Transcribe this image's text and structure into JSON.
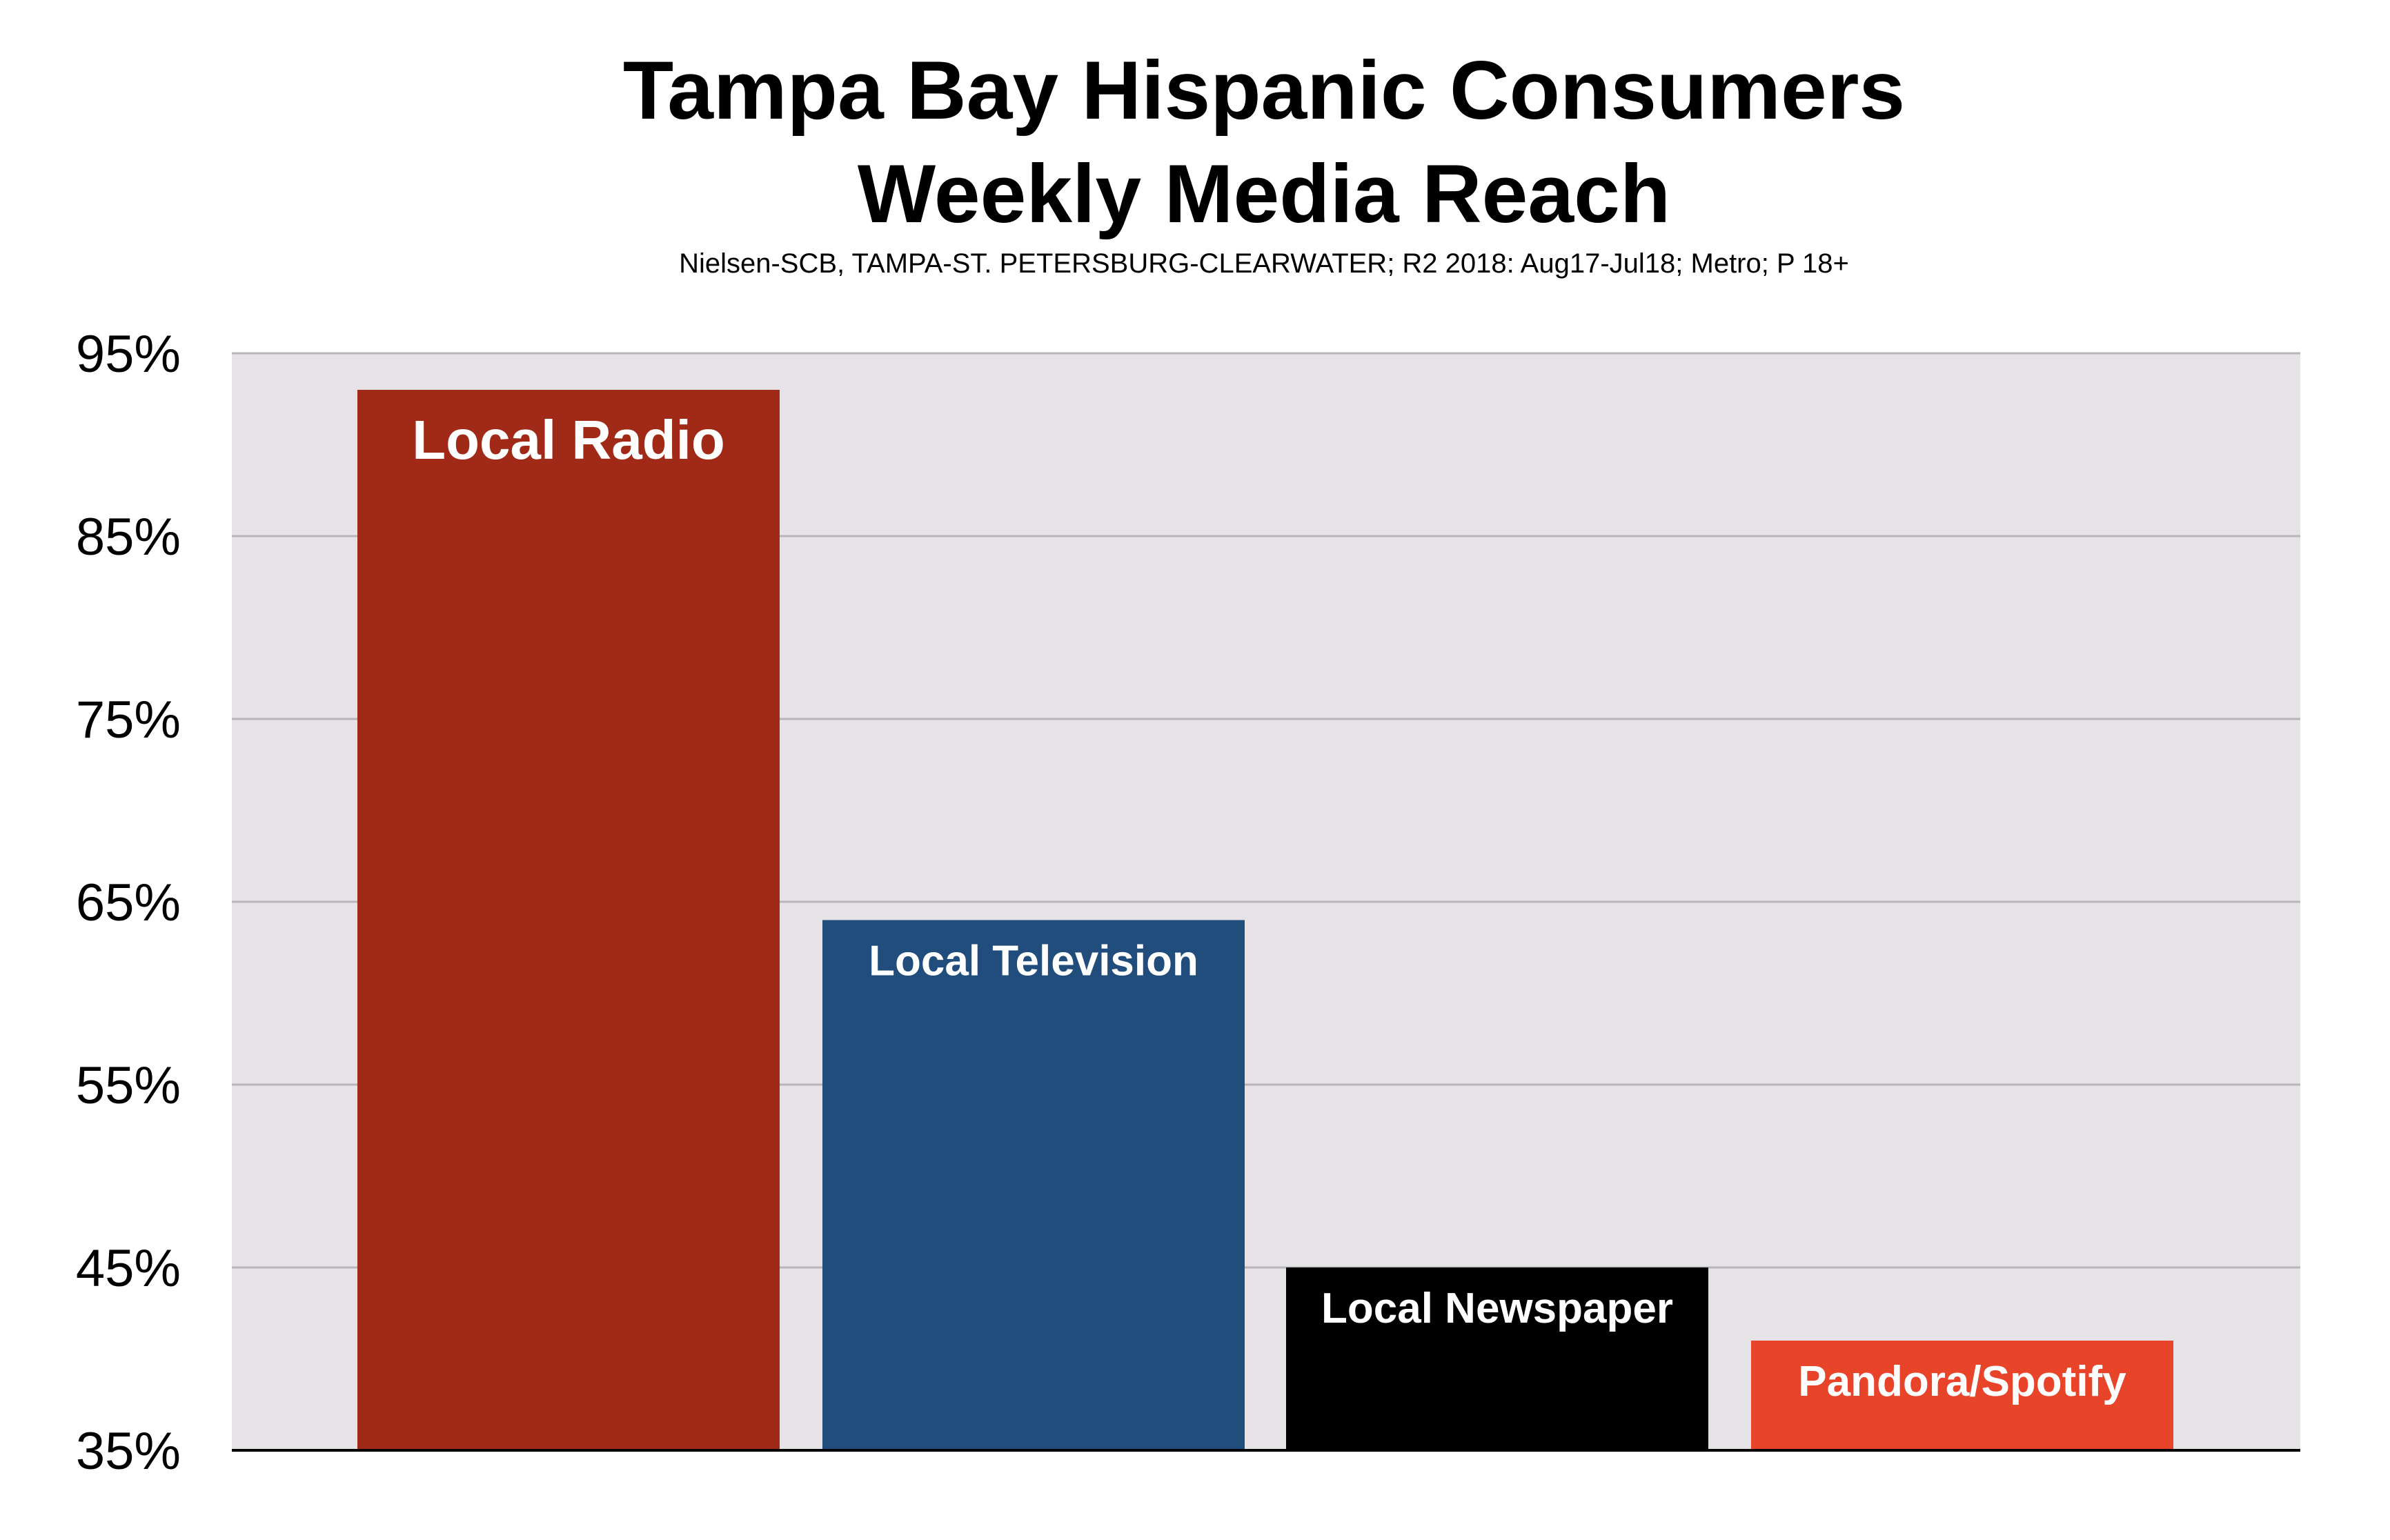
{
  "chart_data": {
    "type": "bar",
    "title": "Tampa Bay Hispanic Consumers",
    "subtitle": "Weekly Media Reach",
    "source": "Nielsen-SCB, TAMPA-ST. PETERSBURG-CLEARWATER; R2 2018: Aug17-Jul18; Metro; P 18+",
    "categories": [
      "Local Radio",
      "Local Television",
      "Local Newspaper",
      "Pandora/Spotify"
    ],
    "values": [
      93,
      64,
      45,
      41
    ],
    "unit": "%",
    "ylim": [
      35,
      95
    ],
    "yticks": [
      35,
      45,
      55,
      65,
      75,
      85,
      95
    ],
    "ytick_labels": [
      "35%",
      "45%",
      "55%",
      "65%",
      "75%",
      "85%",
      "95%"
    ],
    "xlabel": "",
    "ylabel": "",
    "grid": true,
    "legend": "none",
    "colors": [
      "#a02a17",
      "#214d7c",
      "#000000",
      "#e8442a"
    ],
    "plot_background": "#e6e3e7",
    "gridline_color": "#b8b5ba"
  }
}
